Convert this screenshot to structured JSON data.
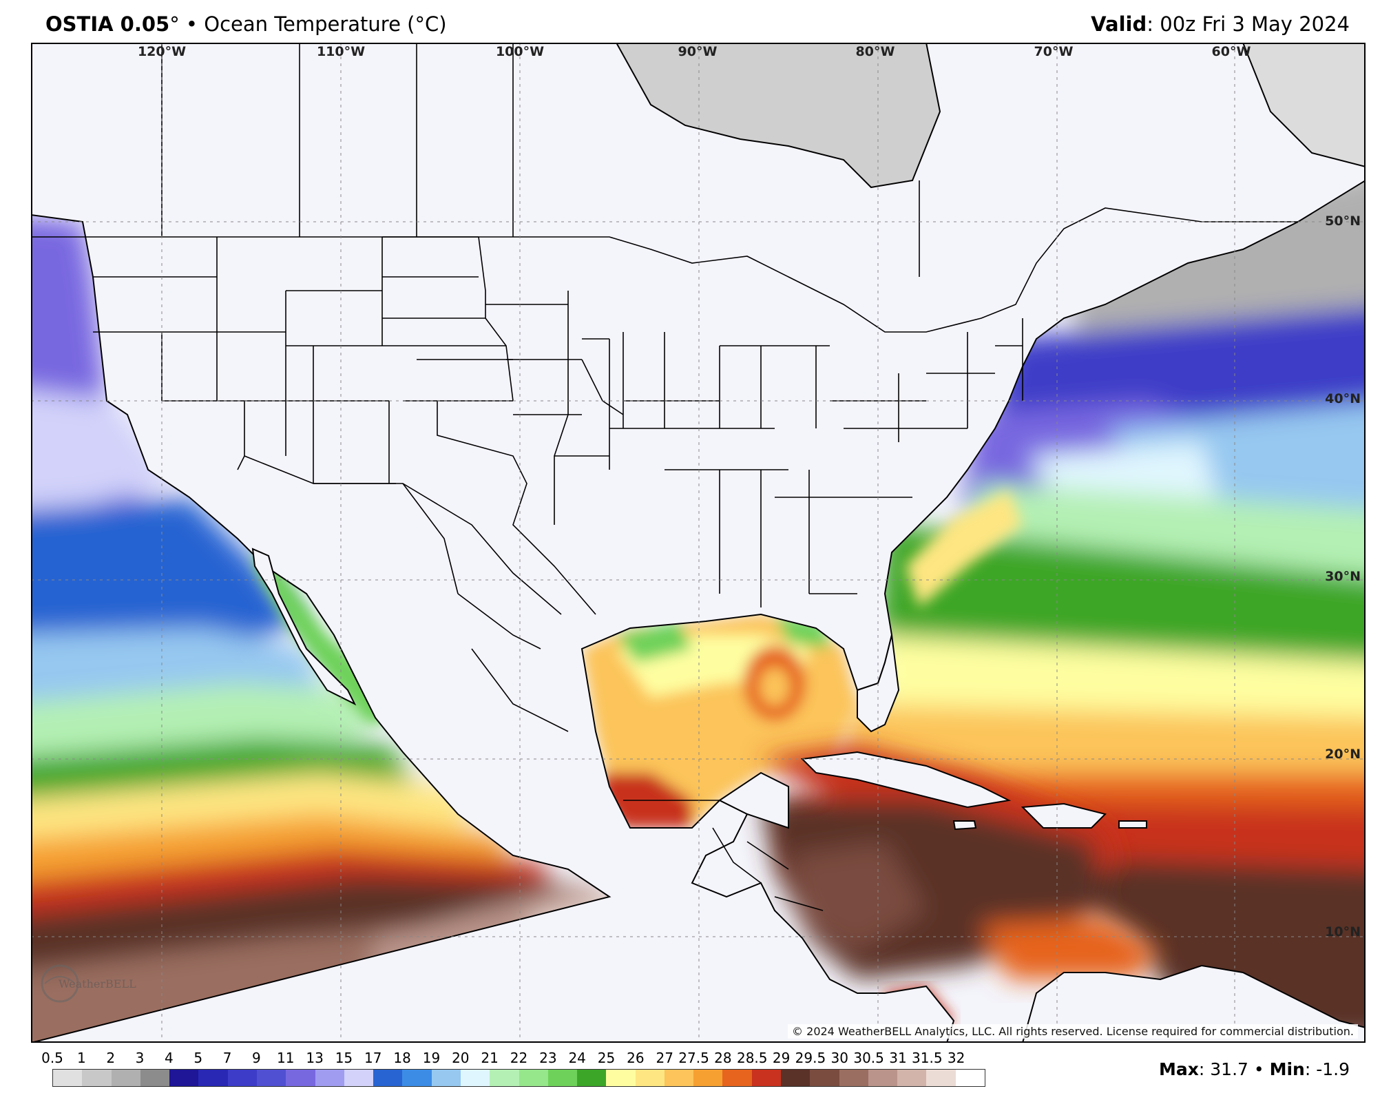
{
  "header": {
    "model": "OSTIA 0.05",
    "degree_symbol": "°",
    "bullet": "•",
    "variable": "Ocean Temperature (°C)",
    "valid_label": "Valid",
    "valid_time": ": 00z Fri 3 May 2024"
  },
  "map": {
    "longitude_labels": [
      "120°W",
      "110°W",
      "100°W",
      "90°W",
      "80°W",
      "70°W",
      "60°W"
    ],
    "latitude_labels": [
      "50°N",
      "40°N",
      "30°N",
      "20°N",
      "10°N"
    ],
    "copyright": "© 2024 WeatherBELL Analytics, LLC. All rights reserved. License required for commercial distribution.",
    "logo_text": "WeatherBELL",
    "colors": {
      "land": "#f4f4fb",
      "ice": "#cfcfcf",
      "border": "#000000"
    }
  },
  "legend": {
    "labels": [
      "0.5",
      "1",
      "2",
      "3",
      "4",
      "5",
      "7",
      "9",
      "11",
      "13",
      "15",
      "17",
      "18",
      "19",
      "20",
      "21",
      "22",
      "23",
      "24",
      "25",
      "26",
      "27",
      "27.5",
      "28",
      "28.5",
      "29",
      "29.5",
      "30",
      "30.5",
      "31",
      "31.5",
      "32"
    ],
    "colors": [
      "#e0e0e0",
      "#c8c8c8",
      "#b0b0b0",
      "#8c8c8c",
      "#1e1696",
      "#2828b4",
      "#3c3cc8",
      "#5050d2",
      "#7868e0",
      "#a09cf0",
      "#d2d2fa",
      "#2864d2",
      "#3c8ce6",
      "#96c8f0",
      "#e0f6fe",
      "#b4f0b4",
      "#96e68c",
      "#6ed25a",
      "#3ca628",
      "#fefea0",
      "#fee682",
      "#fcc45a",
      "#f6a032",
      "#e6641e",
      "#c8321e",
      "#5a3228",
      "#7a4c40",
      "#9a6e60",
      "#ba948a",
      "#d2b4aa",
      "#ecdcd6",
      "#ffffff"
    ]
  },
  "stats": {
    "max_label": "Max",
    "max_value": ": 31.7",
    "separator": "•",
    "min_label": "Min",
    "min_value": ": -1.9"
  }
}
